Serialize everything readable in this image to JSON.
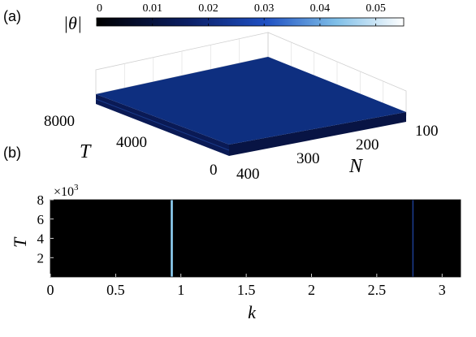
{
  "chart_data": [
    {
      "panel_label": "(a)",
      "type": "surface3d",
      "colorbar": {
        "label": "|θ|",
        "range": [
          0,
          0.055
        ],
        "ticks": [
          0,
          0.01,
          0.02,
          0.03,
          0.04,
          0.05
        ],
        "tick_labels": [
          "0",
          "0.01",
          "0.02",
          "0.03",
          "0.04",
          "0.05"
        ],
        "colors": [
          "#000000",
          "#0b1f66",
          "#1e4fc2",
          "#7fbfe8",
          "#ffffff"
        ]
      },
      "axes": {
        "T": {
          "label": "T",
          "ticks": [
            0,
            4000,
            8000
          ],
          "tick_labels": [
            "0",
            "4000",
            "8000"
          ],
          "range": [
            0,
            8000
          ]
        },
        "N": {
          "label": "N",
          "ticks": [
            100,
            200,
            300,
            400
          ],
          "tick_labels": [
            "100",
            "200",
            "300",
            "400"
          ],
          "range": [
            100,
            400
          ]
        }
      },
      "surface": {
        "value": 0.012,
        "color": "#0e2f80"
      }
    },
    {
      "panel_label": "(b)",
      "type": "heatmap",
      "xlabel": "k",
      "ylabel": "T",
      "xlim": [
        0,
        3.14159
      ],
      "ylim": [
        0,
        8000
      ],
      "x_ticks": [
        0,
        0.5,
        1,
        1.5,
        2,
        2.5,
        3
      ],
      "x_tick_labels": [
        "0",
        "0.5",
        "1",
        "1.5",
        "2",
        "2.5",
        "3"
      ],
      "y_ticks": [
        2,
        4,
        6,
        8
      ],
      "y_tick_labels": [
        "2",
        "4",
        "6",
        "8"
      ],
      "y_multiplier": "×10",
      "y_multiplier_exp": "3",
      "background_value": 0,
      "lines": [
        {
          "k": 0.93,
          "value": 0.05,
          "color": "#8fd0f5"
        },
        {
          "k": 2.78,
          "value": 0.012,
          "color": "#1a3a8a"
        }
      ]
    }
  ]
}
